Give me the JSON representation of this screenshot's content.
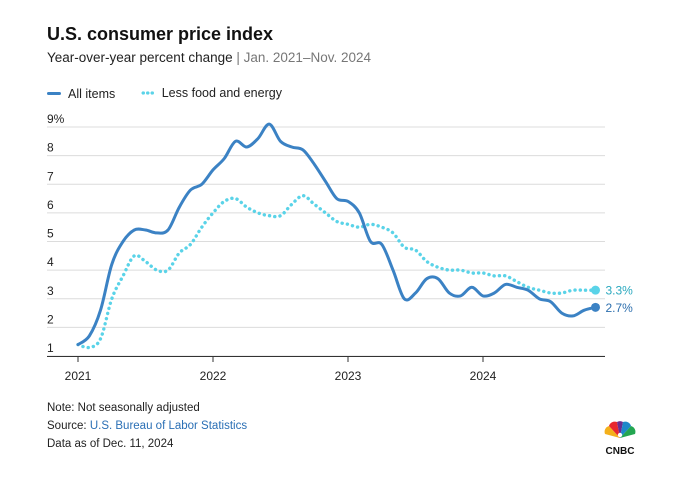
{
  "header": {
    "title": "U.S. consumer price index",
    "subtitle_main": "Year-over-year percent change",
    "subtitle_sep": " | ",
    "subtitle_range": "Jan. 2021–Nov. 2024"
  },
  "colors": {
    "all_items": "#3b82c4",
    "core": "#5ad3e8",
    "grid": "#dcdcdc"
  },
  "chart_data": {
    "type": "line",
    "grid": true,
    "legend_position": "top-left",
    "ylim": [
      1,
      9
    ],
    "y_ticks": [
      1,
      2,
      3,
      4,
      5,
      6,
      7,
      8,
      9
    ],
    "y_tick_labels": [
      "1",
      "2",
      "3",
      "4",
      "5",
      "6",
      "7",
      "8",
      "9%"
    ],
    "x_ticks": [
      "2021",
      "2022",
      "2023",
      "2024"
    ],
    "x_start": "2021-01",
    "series": [
      {
        "name": "All items",
        "style": "solid",
        "end_label": "2.7%",
        "values": [
          1.4,
          1.7,
          2.6,
          4.2,
          5.0,
          5.4,
          5.4,
          5.3,
          5.4,
          6.2,
          6.8,
          7.0,
          7.5,
          7.9,
          8.5,
          8.3,
          8.6,
          9.1,
          8.5,
          8.3,
          8.2,
          7.7,
          7.1,
          6.5,
          6.4,
          6.0,
          5.0,
          4.9,
          4.0,
          3.0,
          3.2,
          3.7,
          3.7,
          3.2,
          3.1,
          3.4,
          3.1,
          3.2,
          3.5,
          3.4,
          3.3,
          3.0,
          2.9,
          2.5,
          2.4,
          2.6,
          2.7
        ]
      },
      {
        "name": "Less food and energy",
        "style": "dotted",
        "end_label": "3.3%",
        "values": [
          1.4,
          1.3,
          1.6,
          3.0,
          3.8,
          4.5,
          4.3,
          4.0,
          4.0,
          4.6,
          4.9,
          5.5,
          6.0,
          6.4,
          6.5,
          6.2,
          6.0,
          5.9,
          5.9,
          6.3,
          6.6,
          6.3,
          6.0,
          5.7,
          5.6,
          5.5,
          5.6,
          5.5,
          5.3,
          4.8,
          4.7,
          4.3,
          4.1,
          4.0,
          4.0,
          3.9,
          3.9,
          3.8,
          3.8,
          3.6,
          3.4,
          3.3,
          3.2,
          3.2,
          3.3,
          3.3,
          3.3
        ]
      }
    ]
  },
  "footer": {
    "note": "Note: Not seasonally adjusted",
    "source_prefix": "Source: ",
    "source_link": "U.S. Bureau of Labor Statistics",
    "data_as_of": "Data as of Dec. 11, 2024"
  },
  "logo": {
    "text": "CNBC",
    "icon": "peacock-logo"
  }
}
